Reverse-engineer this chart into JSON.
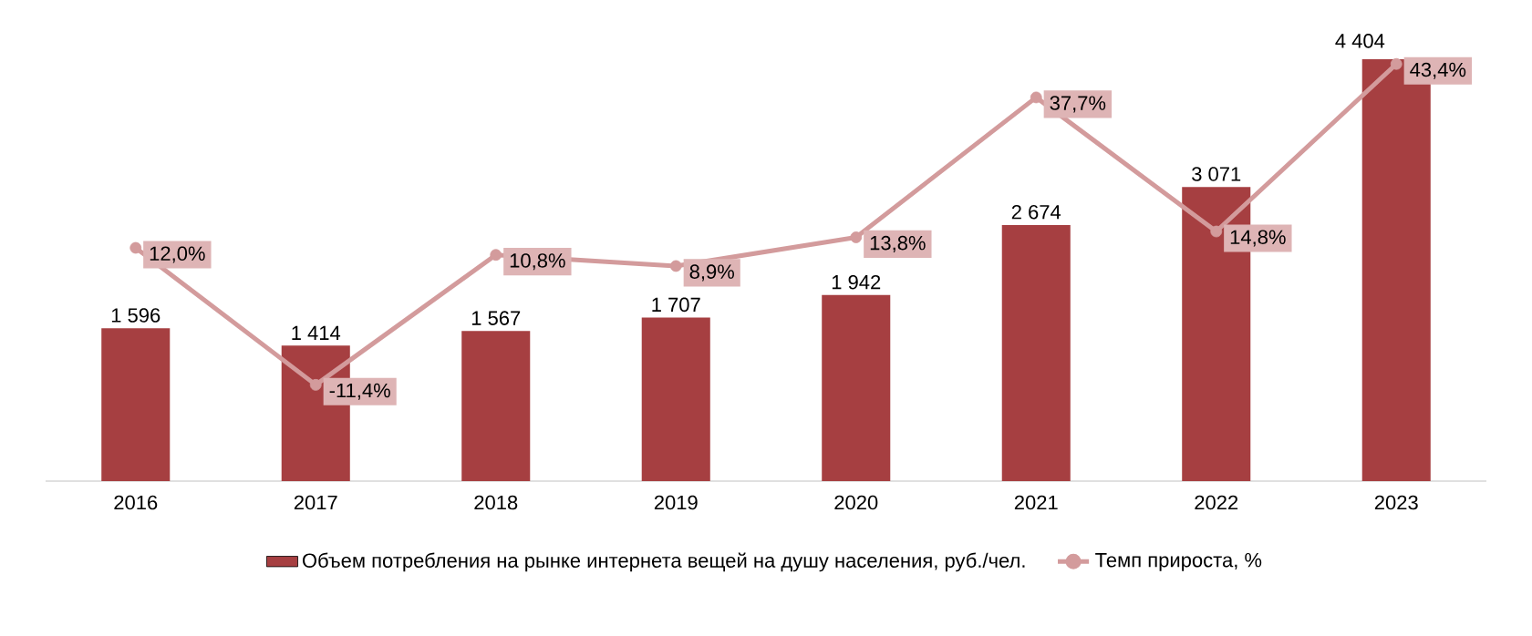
{
  "chart_data": {
    "type": "bar",
    "categories": [
      "2016",
      "2017",
      "2018",
      "2019",
      "2020",
      "2021",
      "2022",
      "2023"
    ],
    "series": [
      {
        "name": "Объем потребления на рынке интернета вещей на душу населения, руб./чел.",
        "type": "bar",
        "color": "#a63f41",
        "values": [
          1596,
          1414,
          1567,
          1707,
          1942,
          2674,
          3071,
          4404
        ],
        "value_labels": [
          "1 596",
          "1 414",
          "1 567",
          "1 707",
          "1 942",
          "2 674",
          "3 071",
          "4 404"
        ]
      },
      {
        "name": "Темп прироста, %",
        "type": "line",
        "axis": "y2",
        "color": "#d39b9c",
        "values": [
          12.0,
          -11.4,
          10.8,
          8.9,
          13.8,
          37.7,
          14.8,
          43.4
        ],
        "value_labels": [
          "12,0%",
          "-11,4%",
          "10,8%",
          "8,9%",
          "13,8%",
          "37,7%",
          "14,8%",
          "43,4%"
        ]
      }
    ],
    "tick_labels": "x",
    "marker": "circle",
    "legend": "bottom"
  }
}
